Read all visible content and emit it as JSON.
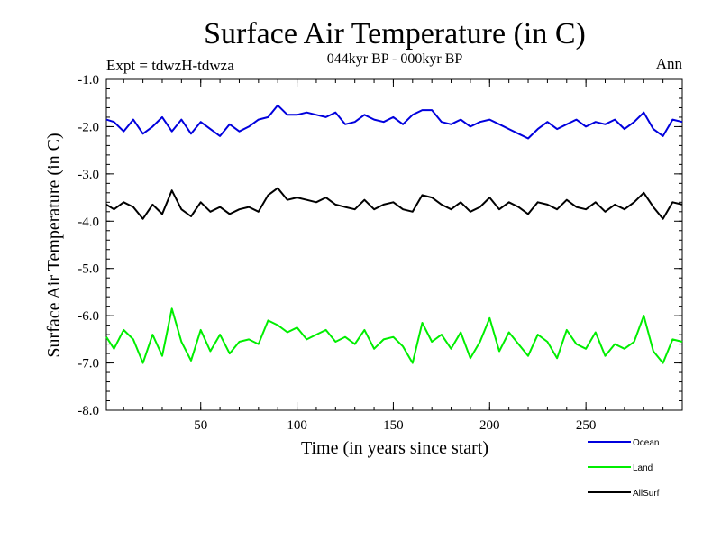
{
  "chart_data": {
    "type": "line",
    "title": "Surface Air Temperature (in C)",
    "subtitle": "044kyr BP - 000kyr BP",
    "experiment_label": "Expt = tdwzH-tdwza",
    "season_label": "Ann",
    "xlabel": "Time (in years since start)",
    "ylabel": "Surface Air Temperature (in C)",
    "xlim": [
      1,
      300
    ],
    "ylim": [
      -8.0,
      -1.0
    ],
    "x_ticks": [
      50,
      100,
      150,
      200,
      250
    ],
    "x_tick_labels": [
      "50",
      "100",
      "150",
      "200",
      "250"
    ],
    "y_ticks": [
      -8.0,
      -7.0,
      -6.0,
      -5.0,
      -4.0,
      -3.0,
      -2.0,
      -1.0
    ],
    "y_tick_labels": [
      "-8.0",
      "-7.0",
      "-6.0",
      "-5.0",
      "-4.0",
      "-3.0",
      "-2.0",
      "-1.0"
    ],
    "legend_position": "bottom-right",
    "series": [
      {
        "name": "Ocean",
        "color": "#0000dd",
        "x": [
          1,
          5,
          10,
          15,
          20,
          25,
          30,
          35,
          40,
          45,
          50,
          55,
          60,
          65,
          70,
          75,
          80,
          85,
          90,
          95,
          100,
          105,
          110,
          115,
          120,
          125,
          130,
          135,
          140,
          145,
          150,
          155,
          160,
          165,
          170,
          175,
          180,
          185,
          190,
          195,
          200,
          205,
          210,
          215,
          220,
          225,
          230,
          235,
          240,
          245,
          250,
          255,
          260,
          265,
          270,
          275,
          280,
          285,
          290,
          295,
          300
        ],
        "values": [
          -1.85,
          -1.9,
          -2.1,
          -1.85,
          -2.15,
          -2.0,
          -1.8,
          -2.1,
          -1.85,
          -2.15,
          -1.9,
          -2.05,
          -2.2,
          -1.95,
          -2.1,
          -2.0,
          -1.85,
          -1.8,
          -1.55,
          -1.75,
          -1.75,
          -1.7,
          -1.75,
          -1.8,
          -1.7,
          -1.95,
          -1.9,
          -1.75,
          -1.85,
          -1.9,
          -1.8,
          -1.95,
          -1.75,
          -1.65,
          -1.65,
          -1.9,
          -1.95,
          -1.85,
          -2.0,
          -1.9,
          -1.85,
          -1.95,
          -2.05,
          -2.15,
          -2.25,
          -2.05,
          -1.9,
          -2.05,
          -1.95,
          -1.85,
          -2.0,
          -1.9,
          -1.95,
          -1.85,
          -2.05,
          -1.9,
          -1.7,
          -2.05,
          -2.2,
          -1.85,
          -1.9
        ]
      },
      {
        "name": "Land",
        "color": "#00ee00",
        "x": [
          1,
          5,
          10,
          15,
          20,
          25,
          30,
          35,
          40,
          45,
          50,
          55,
          60,
          65,
          70,
          75,
          80,
          85,
          90,
          95,
          100,
          105,
          110,
          115,
          120,
          125,
          130,
          135,
          140,
          145,
          150,
          155,
          160,
          165,
          170,
          175,
          180,
          185,
          190,
          195,
          200,
          205,
          210,
          215,
          220,
          225,
          230,
          235,
          240,
          245,
          250,
          255,
          260,
          265,
          270,
          275,
          280,
          285,
          290,
          295,
          300
        ],
        "values": [
          -6.45,
          -6.7,
          -6.3,
          -6.5,
          -7.0,
          -6.4,
          -6.85,
          -5.85,
          -6.55,
          -6.95,
          -6.3,
          -6.75,
          -6.4,
          -6.8,
          -6.55,
          -6.5,
          -6.6,
          -6.1,
          -6.2,
          -6.35,
          -6.25,
          -6.5,
          -6.4,
          -6.3,
          -6.55,
          -6.45,
          -6.6,
          -6.3,
          -6.7,
          -6.5,
          -6.45,
          -6.65,
          -7.0,
          -6.15,
          -6.55,
          -6.4,
          -6.7,
          -6.35,
          -6.9,
          -6.55,
          -6.05,
          -6.75,
          -6.35,
          -6.6,
          -6.85,
          -6.4,
          -6.55,
          -6.9,
          -6.3,
          -6.6,
          -6.7,
          -6.35,
          -6.85,
          -6.6,
          -6.7,
          -6.55,
          -6.0,
          -6.75,
          -7.0,
          -6.5,
          -6.55
        ]
      },
      {
        "name": "AllSurf",
        "color": "#000000",
        "x": [
          1,
          5,
          10,
          15,
          20,
          25,
          30,
          35,
          40,
          45,
          50,
          55,
          60,
          65,
          70,
          75,
          80,
          85,
          90,
          95,
          100,
          105,
          110,
          115,
          120,
          125,
          130,
          135,
          140,
          145,
          150,
          155,
          160,
          165,
          170,
          175,
          180,
          185,
          190,
          195,
          200,
          205,
          210,
          215,
          220,
          225,
          230,
          235,
          240,
          245,
          250,
          255,
          260,
          265,
          270,
          275,
          280,
          285,
          290,
          295,
          300
        ],
        "values": [
          -3.65,
          -3.75,
          -3.6,
          -3.7,
          -3.95,
          -3.65,
          -3.85,
          -3.35,
          -3.75,
          -3.9,
          -3.6,
          -3.8,
          -3.7,
          -3.85,
          -3.75,
          -3.7,
          -3.8,
          -3.45,
          -3.3,
          -3.55,
          -3.5,
          -3.55,
          -3.6,
          -3.5,
          -3.65,
          -3.7,
          -3.75,
          -3.55,
          -3.75,
          -3.65,
          -3.6,
          -3.75,
          -3.8,
          -3.45,
          -3.5,
          -3.65,
          -3.75,
          -3.6,
          -3.8,
          -3.7,
          -3.5,
          -3.75,
          -3.6,
          -3.7,
          -3.85,
          -3.6,
          -3.65,
          -3.75,
          -3.55,
          -3.7,
          -3.75,
          -3.6,
          -3.8,
          -3.65,
          -3.75,
          -3.6,
          -3.4,
          -3.7,
          -3.95,
          -3.6,
          -3.65
        ]
      }
    ]
  }
}
